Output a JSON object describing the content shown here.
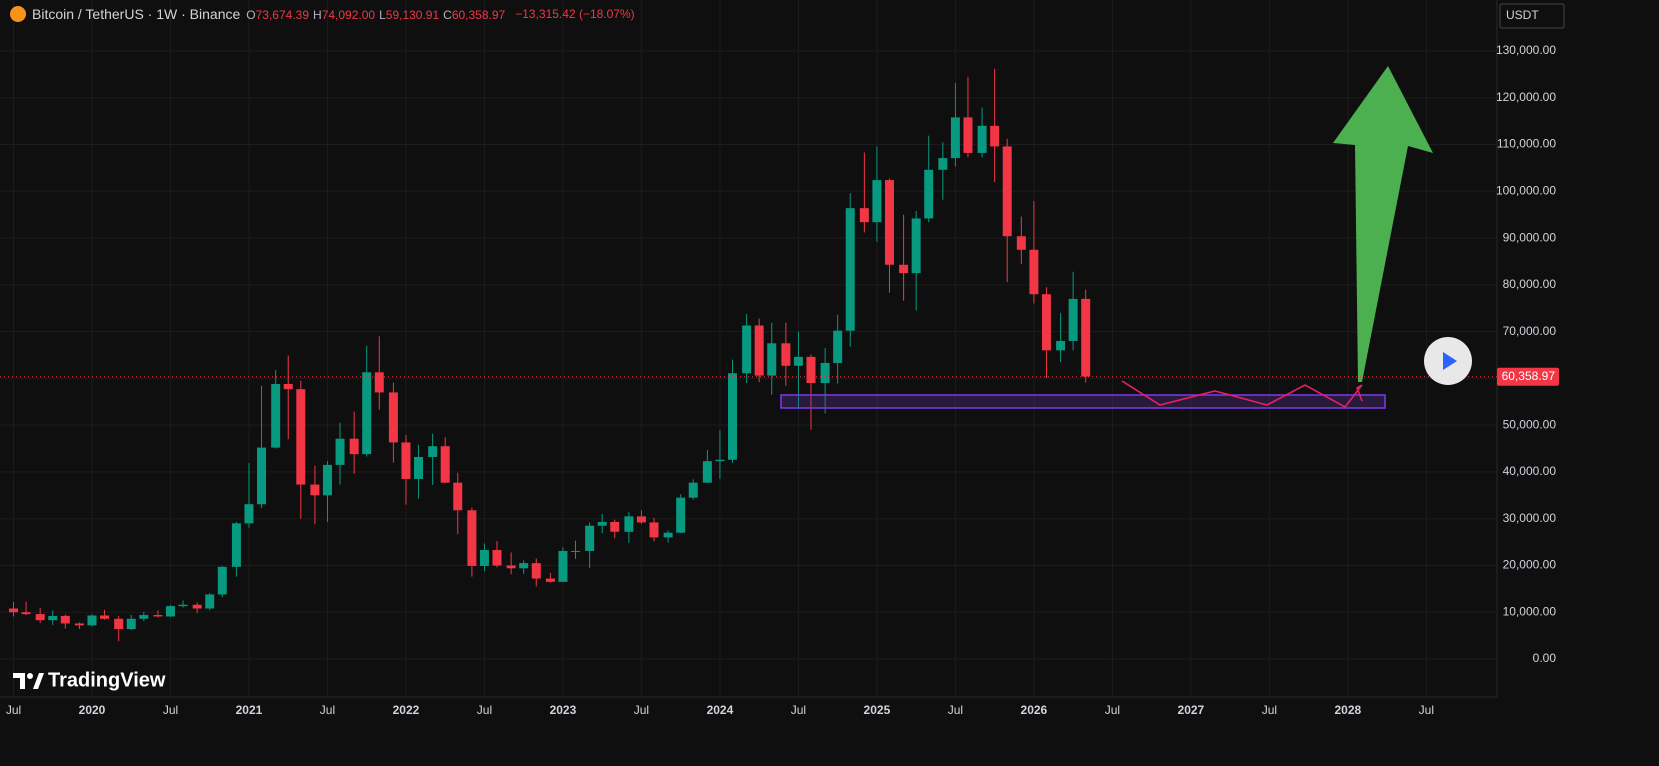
{
  "header": {
    "symbol": "Bitcoin / TetherUS · 1W · Binance",
    "ohlc": [
      {
        "key": "O",
        "value": "73,674.39"
      },
      {
        "key": "H",
        "value": "74,092.00"
      },
      {
        "key": "L",
        "value": "59,130.91"
      },
      {
        "key": "C",
        "value": "60,358.97"
      }
    ],
    "change": "−13,315.42 (−18.07%)",
    "currency": "USDT",
    "brand": "TradingView"
  },
  "chart_data": {
    "type": "candlestick",
    "x": [
      2019.5,
      2019.58,
      2019.67,
      2019.75,
      2019.83,
      2019.92,
      2020,
      2020.08,
      2020.17,
      2020.25,
      2020.33,
      2020.42,
      2020.5,
      2020.58,
      2020.67,
      2020.75,
      2020.83,
      2020.92,
      2021,
      2021.08,
      2021.17,
      2021.25,
      2021.33,
      2021.42,
      2021.5,
      2021.58,
      2021.67,
      2021.75,
      2021.83,
      2021.92,
      2022,
      2022.08,
      2022.17,
      2022.25,
      2022.33,
      2022.42,
      2022.5,
      2022.58,
      2022.67,
      2022.75,
      2022.83,
      2022.92,
      2023,
      2023.08,
      2023.17,
      2023.25,
      2023.33,
      2023.42,
      2023.5,
      2023.58,
      2023.67,
      2023.75,
      2023.83,
      2023.92,
      2024,
      2024.08,
      2024.17,
      2024.25,
      2024.33,
      2024.42,
      2024.5,
      2024.58,
      2024.67,
      2024.75,
      2024.83,
      2024.92,
      2025,
      2025.08,
      2025.17,
      2025.25,
      2025.33,
      2025.42,
      2025.5,
      2025.58,
      2025.67,
      2025.75,
      2025.83,
      2025.92,
      2026,
      2026.08,
      2026.17,
      2026.25,
      2026.33
    ],
    "open": [
      10800,
      10000,
      9600,
      8300,
      9200,
      7600,
      7200,
      9300,
      8600,
      6400,
      8600,
      9400,
      9100,
      11300,
      11600,
      10800,
      13800,
      19700,
      29000,
      33100,
      45200,
      58800,
      57700,
      37300,
      35000,
      41500,
      47100,
      43800,
      61300,
      57000,
      46300,
      38500,
      43200,
      45500,
      37700,
      31800,
      19900,
      23300,
      20000,
      19400,
      20500,
      17200,
      16500,
      23100,
      23100,
      28500,
      29300,
      27200,
      30500,
      29200,
      26000,
      27000,
      34500,
      37700,
      42300,
      42600,
      61100,
      71300,
      60600,
      67500,
      62700,
      64600,
      59000,
      63300,
      70200,
      96400,
      93400,
      102400,
      84300,
      82500,
      94200,
      104600,
      107100,
      115800,
      108200,
      114000,
      109600,
      90400,
      87500,
      78000,
      66000,
      68000,
      77000
    ],
    "high": [
      12200,
      12300,
      10900,
      10400,
      9500,
      7800,
      9600,
      10500,
      9200,
      9400,
      10100,
      10400,
      11500,
      12500,
      12100,
      14100,
      19900,
      29300,
      41900,
      58400,
      61800,
      64900,
      59500,
      41300,
      42300,
      50500,
      52900,
      67000,
      69000,
      59100,
      47900,
      45800,
      48200,
      47400,
      39800,
      32400,
      24700,
      25200,
      22800,
      21100,
      21500,
      18400,
      23900,
      25300,
      29200,
      31000,
      29800,
      31400,
      31800,
      30200,
      27500,
      35200,
      38400,
      44700,
      48900,
      64000,
      73800,
      72800,
      71900,
      71900,
      70000,
      65100,
      66500,
      73600,
      99600,
      108300,
      109600,
      102700,
      95000,
      95800,
      111900,
      110500,
      123200,
      124500,
      117900,
      126200,
      111200,
      94600,
      97900,
      79500,
      74000,
      82800,
      79000
    ],
    "low": [
      9100,
      9400,
      7700,
      7300,
      6500,
      6400,
      6900,
      8400,
      3800,
      6200,
      8100,
      8900,
      9000,
      11000,
      9800,
      10400,
      13200,
      17600,
      28100,
      32300,
      45000,
      47000,
      30000,
      28800,
      29300,
      37300,
      39600,
      43300,
      53300,
      42000,
      33000,
      34300,
      37200,
      37600,
      26700,
      17600,
      18800,
      19600,
      18100,
      18200,
      15500,
      16300,
      16500,
      21400,
      19500,
      26900,
      25800,
      24800,
      28900,
      25200,
      24900,
      26900,
      34100,
      37600,
      38500,
      41900,
      59000,
      59200,
      56500,
      58400,
      53500,
      49000,
      52500,
      58900,
      66800,
      91200,
      89200,
      78300,
      76600,
      74500,
      93400,
      98200,
      105300,
      107300,
      107300,
      102000,
      80600,
      84400,
      76000,
      60100,
      63500,
      66000,
      59100
    ],
    "close": [
      10000,
      9600,
      8300,
      9200,
      7600,
      7200,
      9300,
      8600,
      6400,
      8600,
      9400,
      9100,
      11300,
      11600,
      10800,
      13800,
      19700,
      29000,
      33100,
      45200,
      58800,
      57700,
      37300,
      35000,
      41500,
      47100,
      43800,
      61300,
      57000,
      46300,
      38500,
      43200,
      45500,
      37700,
      31800,
      19900,
      23300,
      20000,
      19400,
      20500,
      17200,
      16500,
      23100,
      23100,
      28500,
      29300,
      27200,
      30500,
      29200,
      26000,
      27000,
      34500,
      37700,
      42300,
      42600,
      61100,
      71300,
      60600,
      67500,
      62700,
      64600,
      59000,
      63300,
      70200,
      96400,
      93400,
      102400,
      84300,
      82500,
      94200,
      104600,
      107100,
      115800,
      108200,
      114000,
      109600,
      90400,
      87500,
      78000,
      66000,
      68000,
      77000,
      60400
    ],
    "up_color": "#089981",
    "down_color": "#f23645",
    "xlim": [
      2019.414,
      2028.95
    ],
    "xticks": [
      {
        "value": 2019.5,
        "label": "Jul"
      },
      2020,
      {
        "value": 2020.5,
        "label": "Jul"
      },
      2021,
      {
        "value": 2021.5,
        "label": "Jul"
      },
      2022,
      {
        "value": 2022.5,
        "label": "Jul"
      },
      2023,
      {
        "value": 2023.5,
        "label": "Jul"
      },
      2024,
      {
        "value": 2024.5,
        "label": "Jul"
      },
      2025,
      {
        "value": 2025.5,
        "label": "Jul"
      },
      2026,
      {
        "value": 2026.5,
        "label": "Jul"
      },
      2027,
      {
        "value": 2027.5,
        "label": "Jul"
      },
      2028,
      {
        "value": 2028.5,
        "label": "Jul"
      }
    ],
    "ylim": [
      -8125,
      140905
    ],
    "yticks": [
      {
        "value": 0,
        "label": "0.00"
      },
      {
        "value": 10000,
        "label": "10,000.00"
      },
      {
        "value": 20000,
        "label": "20,000.00"
      },
      {
        "value": 30000,
        "label": "30,000.00"
      },
      {
        "value": 40000,
        "label": "40,000.00"
      },
      {
        "value": 50000,
        "label": "50,000.00"
      },
      {
        "value": 60000,
        "label": "60,000.00"
      },
      {
        "value": 70000,
        "label": "70,000.00"
      },
      {
        "value": 80000,
        "label": "80,000.00"
      },
      {
        "value": 90000,
        "label": "90,000.00"
      },
      {
        "value": 100000,
        "label": "100,000.00"
      },
      {
        "value": 110000,
        "label": "110,000.00"
      },
      {
        "value": 120000,
        "label": "120,000.00"
      },
      {
        "value": 130000,
        "label": "130,000.00"
      }
    ],
    "grid": true,
    "last_price": {
      "value": 60358.97,
      "label": "60,358.97",
      "color": "#f23645"
    }
  }
}
